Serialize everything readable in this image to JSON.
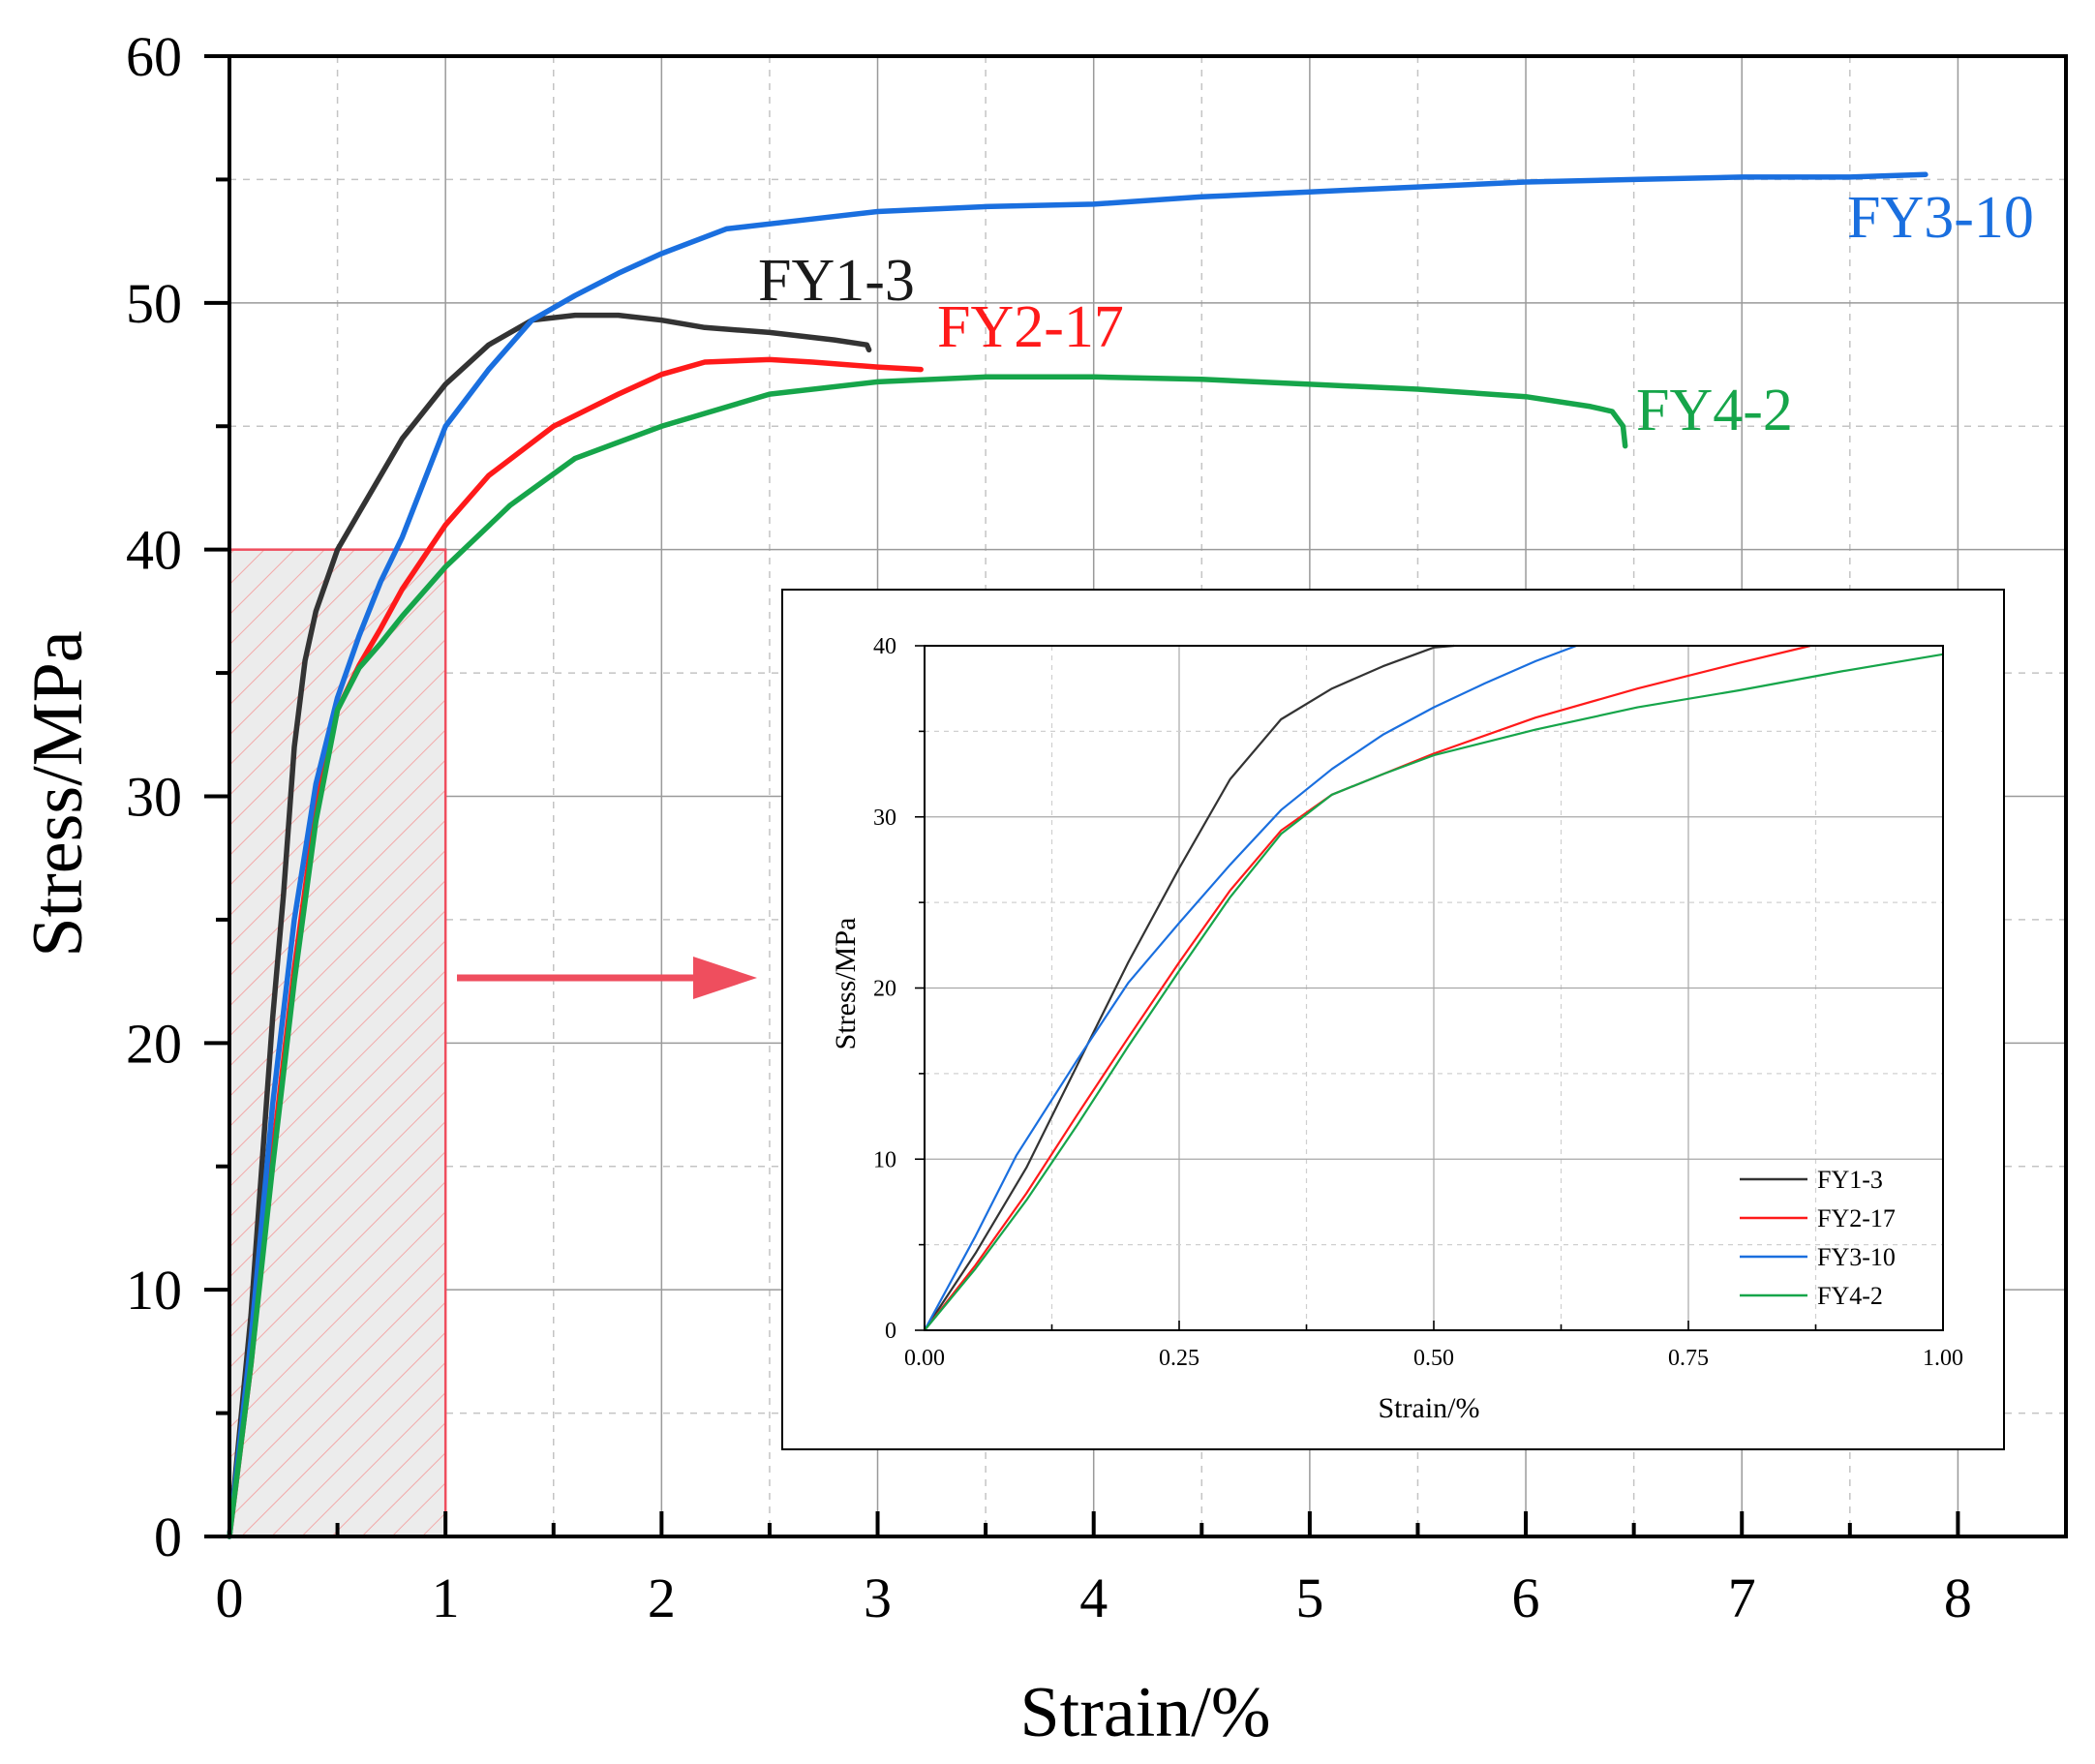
{
  "chart_data": [
    {
      "type": "line",
      "title": "",
      "xlabel": "Strain/%",
      "ylabel": "Stress/MPa",
      "xlim": [
        0,
        8.5
      ],
      "ylim": [
        0,
        60
      ],
      "x_ticks": [
        "0",
        "1",
        "2",
        "3",
        "4",
        "5",
        "6",
        "7",
        "8"
      ],
      "y_ticks": [
        "0",
        "10",
        "20",
        "30",
        "40",
        "50",
        "60"
      ],
      "grid": true,
      "zoom_region": {
        "x": [
          0,
          1
        ],
        "y": [
          0,
          40
        ]
      },
      "series": [
        {
          "name": "FY1-3",
          "color": "#333333",
          "x": [
            0,
            0.1,
            0.2,
            0.25,
            0.3,
            0.35,
            0.4,
            0.5,
            0.6,
            0.8,
            1.0,
            1.2,
            1.4,
            1.6,
            1.8,
            2.0,
            2.2,
            2.5,
            2.8,
            2.95,
            2.96
          ],
          "y": [
            0,
            9,
            21,
            26,
            32,
            35.5,
            37.5,
            40,
            41.5,
            44.5,
            46.7,
            48.3,
            49.3,
            49.5,
            49.5,
            49.3,
            49.0,
            48.8,
            48.5,
            48.3,
            48.1
          ]
        },
        {
          "name": "FY2-17",
          "color": "#ff1a1a",
          "x": [
            0,
            0.1,
            0.2,
            0.3,
            0.4,
            0.5,
            0.6,
            0.7,
            0.8,
            1.0,
            1.2,
            1.5,
            1.8,
            2.0,
            2.2,
            2.5,
            2.7,
            3.0,
            3.2
          ],
          "y": [
            0,
            7,
            15.5,
            23,
            29.5,
            33.5,
            35.3,
            36.8,
            38.4,
            41,
            43,
            45,
            46.3,
            47.1,
            47.6,
            47.7,
            47.6,
            47.4,
            47.3
          ]
        },
        {
          "name": "FY3-10",
          "color": "#1a6fdf",
          "x": [
            0,
            0.1,
            0.2,
            0.3,
            0.4,
            0.5,
            0.6,
            0.7,
            0.8,
            1.0,
            1.2,
            1.4,
            1.6,
            1.8,
            2.0,
            2.3,
            2.6,
            3.0,
            3.5,
            4.0,
            4.5,
            5.0,
            5.5,
            6.0,
            6.5,
            7.0,
            7.5,
            7.85
          ],
          "y": [
            0,
            8,
            17.5,
            25,
            30.5,
            34,
            36.5,
            38.7,
            40.5,
            45,
            47.3,
            49.3,
            50.3,
            51.2,
            52,
            53,
            53.3,
            53.7,
            53.9,
            54.0,
            54.3,
            54.5,
            54.7,
            54.9,
            55.0,
            55.1,
            55.1,
            55.2
          ]
        },
        {
          "name": "FY4-2",
          "color": "#16a54a",
          "x": [
            0,
            0.1,
            0.2,
            0.3,
            0.4,
            0.5,
            0.6,
            0.7,
            0.8,
            1.0,
            1.3,
            1.6,
            2.0,
            2.5,
            3.0,
            3.5,
            4.0,
            4.5,
            5.0,
            5.5,
            6.0,
            6.3,
            6.4,
            6.45,
            6.46
          ],
          "y": [
            0,
            7,
            15,
            22.5,
            29,
            33.5,
            35.2,
            36.2,
            37.3,
            39.3,
            41.8,
            43.7,
            45.0,
            46.3,
            46.8,
            47.0,
            47.0,
            46.9,
            46.7,
            46.5,
            46.2,
            45.8,
            45.6,
            45.0,
            44.2
          ]
        }
      ],
      "annotations": [
        "FY1-3",
        "FY2-17",
        "FY3-10",
        "FY4-2"
      ]
    },
    {
      "type": "line",
      "title": "",
      "xlabel": "Strain/%",
      "ylabel": "Stress/MPa",
      "xlim": [
        0,
        1.0
      ],
      "ylim": [
        0,
        40
      ],
      "x_ticks": [
        "0.00",
        "0.25",
        "0.50",
        "0.75",
        "1.00"
      ],
      "y_ticks": [
        "0",
        "10",
        "20",
        "30",
        "40"
      ],
      "grid": true,
      "legend": "bottom-right",
      "legend_entries": [
        "FY1-3",
        "FY2-17",
        "FY3-10",
        "FY4-2"
      ],
      "series": [
        {
          "name": "FY1-3",
          "color": "#333333",
          "x": [
            0,
            0.05,
            0.1,
            0.15,
            0.2,
            0.25,
            0.3,
            0.35,
            0.4,
            0.45,
            0.5,
            0.52
          ],
          "y": [
            0,
            4.5,
            9.5,
            15.5,
            21.5,
            27,
            32.2,
            35.7,
            37.5,
            38.8,
            39.9,
            40
          ]
        },
        {
          "name": "FY2-17",
          "color": "#ff1a1a",
          "x": [
            0,
            0.05,
            0.1,
            0.15,
            0.2,
            0.25,
            0.3,
            0.35,
            0.4,
            0.45,
            0.5,
            0.6,
            0.7,
            0.8,
            0.87
          ],
          "y": [
            0,
            3.8,
            8,
            12.6,
            17.1,
            21.5,
            25.7,
            29.2,
            31.3,
            32.5,
            33.7,
            35.8,
            37.5,
            39,
            40
          ]
        },
        {
          "name": "FY3-10",
          "color": "#1a6fdf",
          "x": [
            0,
            0.05,
            0.09,
            0.15,
            0.2,
            0.25,
            0.3,
            0.35,
            0.4,
            0.45,
            0.5,
            0.55,
            0.6,
            0.64
          ],
          "y": [
            0,
            5.5,
            10.2,
            15.8,
            20.3,
            23.8,
            27.2,
            30.4,
            32.8,
            34.8,
            36.4,
            37.8,
            39.1,
            40
          ]
        },
        {
          "name": "FY4-2",
          "color": "#16a54a",
          "x": [
            0,
            0.05,
            0.1,
            0.15,
            0.2,
            0.25,
            0.3,
            0.35,
            0.4,
            0.45,
            0.5,
            0.6,
            0.7,
            0.8,
            0.9,
            1.0
          ],
          "y": [
            0,
            3.6,
            7.6,
            12,
            16.6,
            21,
            25.3,
            29,
            31.3,
            32.5,
            33.6,
            35.1,
            36.4,
            37.4,
            38.5,
            39.5
          ]
        }
      ]
    }
  ]
}
